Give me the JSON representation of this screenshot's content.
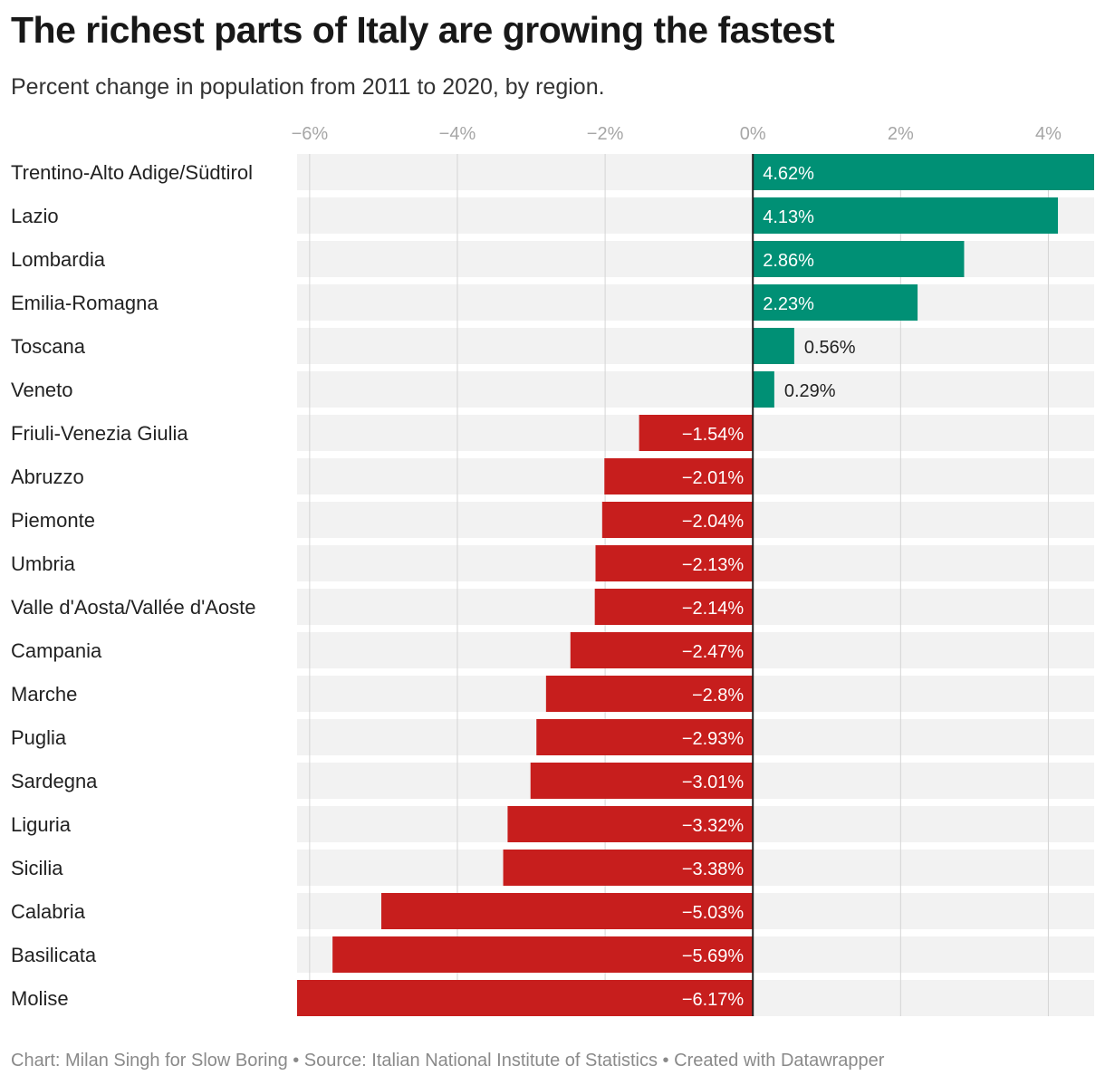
{
  "title": "The richest parts of Italy are growing the fastest",
  "subtitle": "Percent change in population from 2011 to 2020, by region.",
  "footer": "Chart: Milan Singh for Slow Boring • Source: Italian National Institute of Statistics • Created with Datawrapper",
  "colors": {
    "positive": "#009075",
    "negative": "#c71e1d",
    "row_bg": "#f2f2f2",
    "grid": "#d4d4d4",
    "zero_line": "#222222"
  },
  "chart_data": {
    "type": "bar",
    "orientation": "horizontal",
    "categories": [
      "Trentino-Alto Adige/Südtirol",
      "Lazio",
      "Lombardia",
      "Emilia-Romagna",
      "Toscana",
      "Veneto",
      "Friuli-Venezia Giulia",
      "Abruzzo",
      "Piemonte",
      "Umbria",
      "Valle d'Aosta/Vallée d'Aoste",
      "Campania",
      "Marche",
      "Puglia",
      "Sardegna",
      "Liguria",
      "Sicilia",
      "Calabria",
      "Basilicata",
      "Molise"
    ],
    "values": [
      4.62,
      4.13,
      2.86,
      2.23,
      0.56,
      0.29,
      -1.54,
      -2.01,
      -2.04,
      -2.13,
      -2.14,
      -2.47,
      -2.8,
      -2.93,
      -3.01,
      -3.32,
      -3.38,
      -5.03,
      -5.69,
      -6.17
    ],
    "value_labels": [
      "4.62%",
      "4.13%",
      "2.86%",
      "2.23%",
      "0.56%",
      "0.29%",
      "−1.54%",
      "−2.01%",
      "−2.04%",
      "−2.13%",
      "−2.14%",
      "−2.47%",
      "−2.8%",
      "−2.93%",
      "−3.01%",
      "−3.32%",
      "−3.38%",
      "−5.03%",
      "−5.69%",
      "−6.17%"
    ],
    "xlim": [
      -6.17,
      4.62
    ],
    "xticks": [
      -6,
      -4,
      -2,
      0,
      2,
      4
    ],
    "xtick_labels": [
      "−6%",
      "−4%",
      "−2%",
      "0%",
      "2%",
      "4%"
    ],
    "grid": true,
    "xlabel": "",
    "ylabel": ""
  }
}
